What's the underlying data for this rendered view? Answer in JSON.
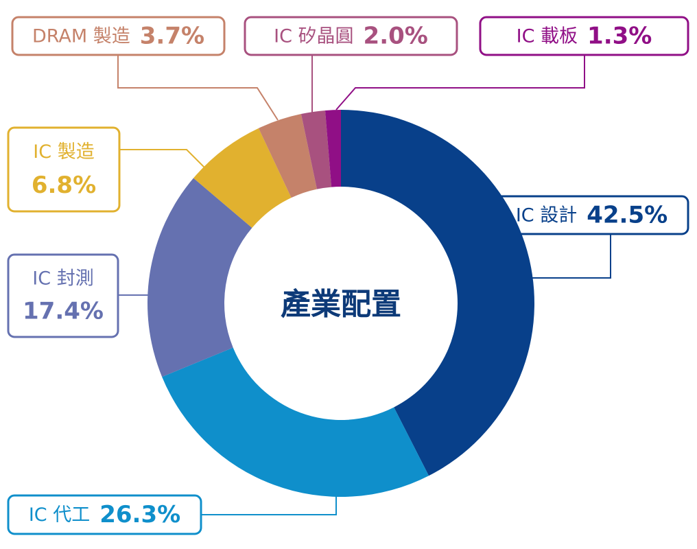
{
  "chart_data": {
    "type": "donut",
    "title": "產業配置",
    "categories": [
      "IC 設計",
      "IC 代工",
      "IC 封測",
      "IC 製造",
      "DRAM 製造",
      "IC 矽晶圓",
      "IC 載板"
    ],
    "values": [
      42.5,
      26.3,
      17.4,
      6.8,
      3.7,
      2.0,
      1.3
    ],
    "value_labels": [
      "42.5%",
      "26.3%",
      "17.4%",
      "6.8%",
      "3.7%",
      "2.0%",
      "1.3%"
    ],
    "colors": [
      "#08408a",
      "#0f8fcb",
      "#6571b0",
      "#e1b12f",
      "#c5826a",
      "#a8517f",
      "#900f86"
    ]
  }
}
